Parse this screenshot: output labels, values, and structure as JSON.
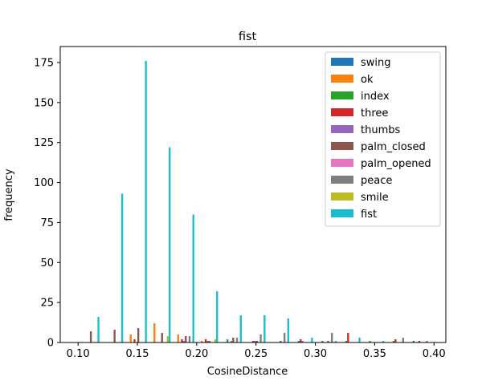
{
  "chart_data": {
    "type": "bar",
    "title": "fist",
    "xlabel": "CosineDistance",
    "ylabel": "frequency",
    "xlim": [
      0.085,
      0.41
    ],
    "ylim": [
      0,
      185
    ],
    "xticks": [
      0.1,
      0.15,
      0.2,
      0.25,
      0.3,
      0.35,
      0.4
    ],
    "xtick_labels": [
      "0.10",
      "0.15",
      "0.20",
      "0.25",
      "0.30",
      "0.35",
      "0.40"
    ],
    "yticks": [
      0,
      25,
      50,
      75,
      100,
      125,
      150,
      175
    ],
    "ytick_labels": [
      "0",
      "25",
      "50",
      "75",
      "100",
      "125",
      "150",
      "175"
    ],
    "grid": false,
    "legend_position": "top-right",
    "bin_edges": [
      0.1,
      0.12,
      0.14,
      0.16,
      0.18,
      0.2,
      0.22,
      0.24,
      0.26,
      0.28,
      0.3,
      0.32,
      0.34,
      0.36,
      0.38,
      0.4
    ],
    "series": [
      {
        "name": "swing",
        "color": "#1f77b4",
        "values": [
          0,
          0,
          0,
          0,
          0,
          0,
          0,
          0,
          0,
          0,
          0,
          0,
          0,
          0,
          1
        ]
      },
      {
        "name": "ok",
        "color": "#ff7f0e",
        "values": [
          0,
          0,
          5,
          12,
          5,
          1,
          0,
          0,
          0,
          0,
          0,
          0,
          0,
          0,
          0
        ]
      },
      {
        "name": "index",
        "color": "#2ca02c",
        "values": [
          0,
          0,
          0,
          0,
          0,
          0,
          2,
          0,
          0,
          1,
          1,
          1,
          1,
          1,
          0
        ]
      },
      {
        "name": "three",
        "color": "#d62728",
        "values": [
          0,
          0,
          2,
          0,
          2,
          2,
          0,
          1,
          0,
          2,
          0,
          6,
          0,
          2,
          1
        ]
      },
      {
        "name": "thumbs",
        "color": "#9467bd",
        "values": [
          0,
          0,
          0,
          0,
          1,
          1,
          1,
          1,
          0,
          1,
          0,
          0,
          0,
          0,
          0
        ]
      },
      {
        "name": "palm_closed",
        "color": "#8c564b",
        "values": [
          7,
          8,
          9,
          6,
          4,
          1,
          3,
          1,
          1,
          0,
          1,
          0,
          0,
          0,
          0
        ]
      },
      {
        "name": "palm_opened",
        "color": "#e377c2",
        "values": [
          0,
          0,
          0,
          0,
          0,
          0,
          0,
          0,
          0,
          0,
          0,
          0,
          0,
          0,
          0
        ]
      },
      {
        "name": "peace",
        "color": "#7f7f7f",
        "values": [
          0,
          0,
          0,
          0,
          4,
          0,
          3,
          5,
          6,
          0,
          6,
          0,
          0,
          3,
          1
        ]
      },
      {
        "name": "smile",
        "color": "#bcbd22",
        "values": [
          0,
          0,
          0,
          4,
          0,
          2,
          0,
          0,
          0,
          0,
          0,
          0,
          0,
          0,
          0
        ]
      },
      {
        "name": "fist",
        "color": "#17becf",
        "values": [
          16,
          93,
          176,
          122,
          80,
          32,
          17,
          17,
          15,
          3,
          1,
          3,
          1,
          0,
          0
        ]
      }
    ]
  }
}
